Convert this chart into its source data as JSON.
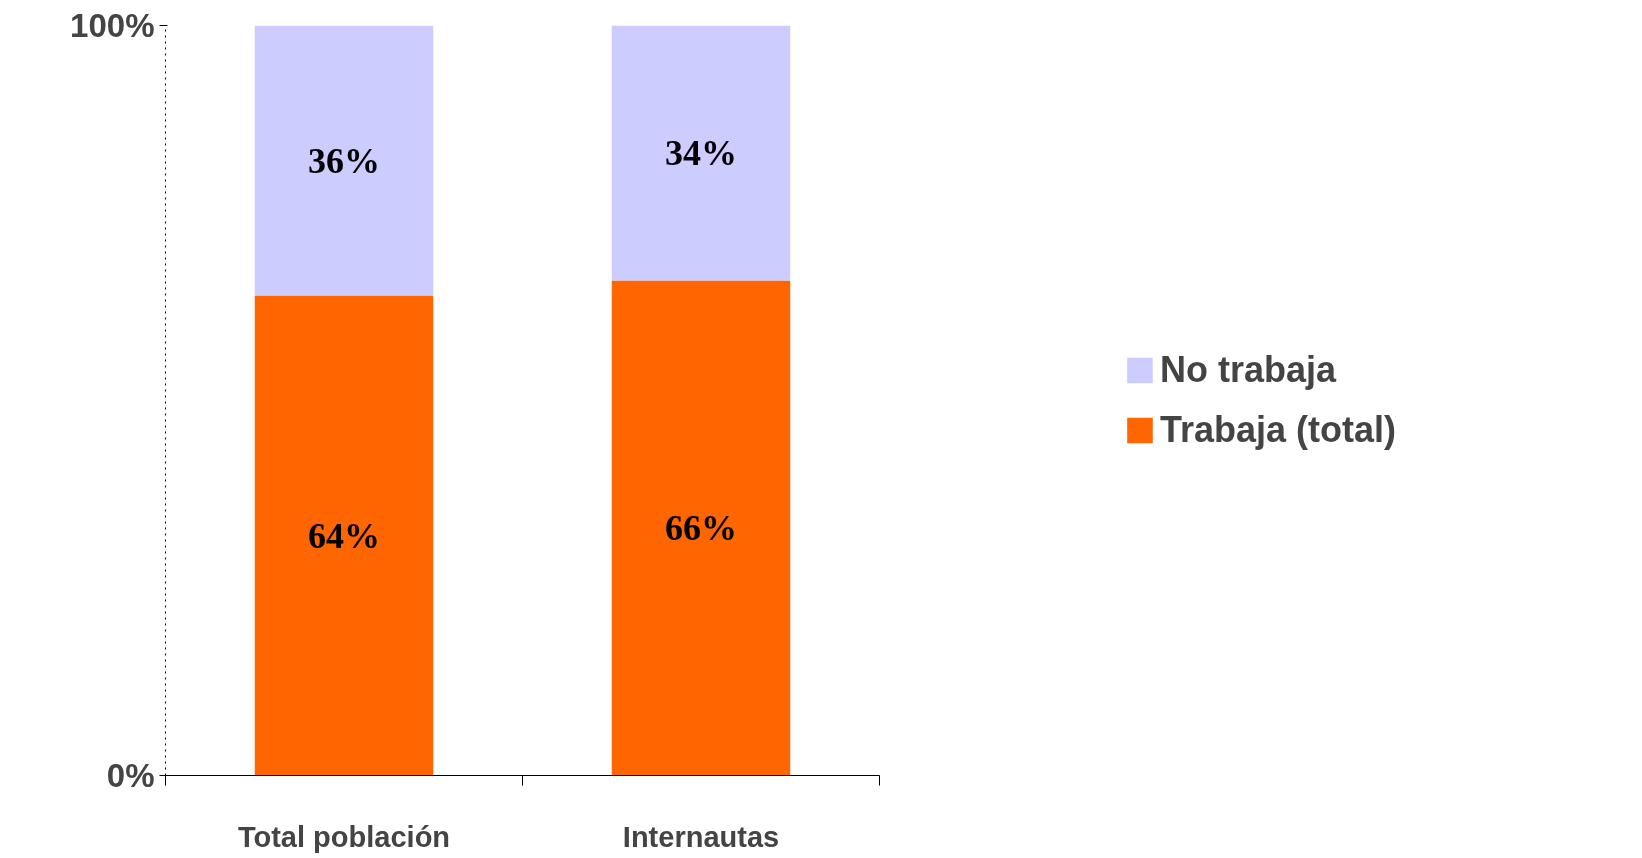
{
  "chart_data": {
    "type": "bar",
    "stacked": true,
    "categories": [
      "Total población",
      "Internautas"
    ],
    "series": [
      {
        "name": "Trabaja (total)",
        "color": "#ff6600",
        "values": [
          64,
          66
        ],
        "value_labels": [
          "64%",
          "66%"
        ]
      },
      {
        "name": "No trabaja",
        "color": "#ccccff",
        "values": [
          36,
          34
        ],
        "value_labels": [
          "36%",
          "34%"
        ]
      }
    ],
    "ylim": [
      0,
      100
    ],
    "yticks": [
      {
        "value": 0,
        "label": "0%"
      },
      {
        "value": 100,
        "label": "100%"
      }
    ],
    "grid": false,
    "legend": "right"
  }
}
